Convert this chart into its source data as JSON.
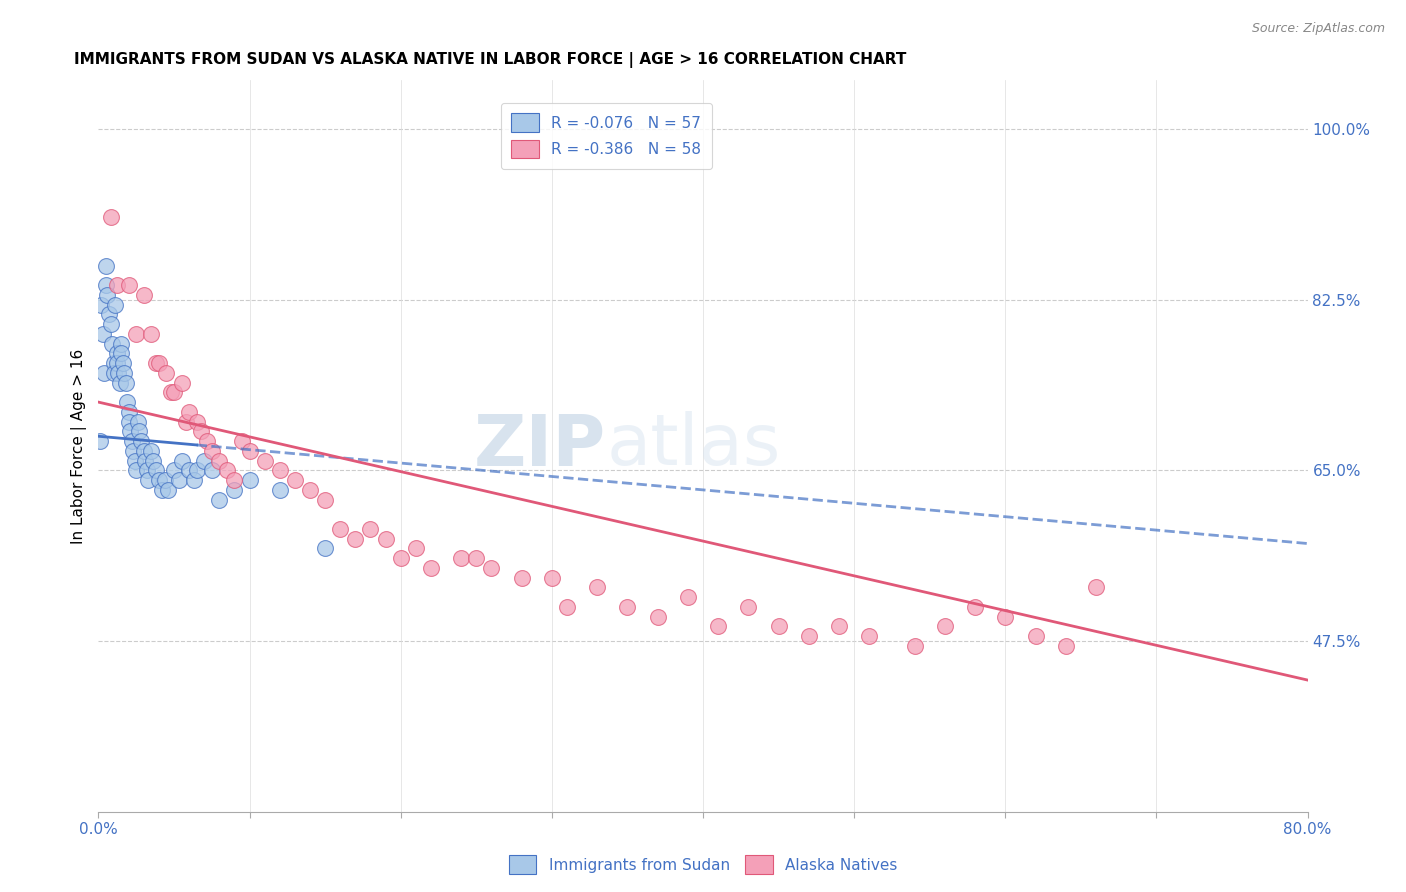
{
  "title": "IMMIGRANTS FROM SUDAN VS ALASKA NATIVE IN LABOR FORCE | AGE > 16 CORRELATION CHART",
  "source": "Source: ZipAtlas.com",
  "ylabel": "In Labor Force | Age > 16",
  "right_yticks": [
    "100.0%",
    "82.5%",
    "65.0%",
    "47.5%"
  ],
  "right_ytick_vals": [
    1.0,
    0.825,
    0.65,
    0.475
  ],
  "legend_r1": "R = -0.076   N = 57",
  "legend_r2": "R = -0.386   N = 58",
  "color_blue": "#a8c8e8",
  "color_pink": "#f4a0b8",
  "color_blue_dark": "#4472c4",
  "color_pink_dark": "#e05878",
  "watermark_zip": "ZIP",
  "watermark_atlas": "atlas",
  "xmin": 0.0,
  "xmax": 0.8,
  "ymin": 0.3,
  "ymax": 1.05,
  "sudan_x": [
    0.001,
    0.002,
    0.003,
    0.004,
    0.005,
    0.005,
    0.006,
    0.007,
    0.008,
    0.009,
    0.01,
    0.01,
    0.011,
    0.012,
    0.012,
    0.013,
    0.014,
    0.015,
    0.015,
    0.016,
    0.017,
    0.018,
    0.019,
    0.02,
    0.02,
    0.021,
    0.022,
    0.023,
    0.024,
    0.025,
    0.026,
    0.027,
    0.028,
    0.03,
    0.031,
    0.032,
    0.033,
    0.035,
    0.036,
    0.038,
    0.04,
    0.042,
    0.044,
    0.046,
    0.05,
    0.053,
    0.055,
    0.06,
    0.063,
    0.065,
    0.07,
    0.075,
    0.08,
    0.09,
    0.1,
    0.12,
    0.15
  ],
  "sudan_y": [
    0.68,
    0.82,
    0.79,
    0.75,
    0.86,
    0.84,
    0.83,
    0.81,
    0.8,
    0.78,
    0.76,
    0.75,
    0.82,
    0.77,
    0.76,
    0.75,
    0.74,
    0.78,
    0.77,
    0.76,
    0.75,
    0.74,
    0.72,
    0.71,
    0.7,
    0.69,
    0.68,
    0.67,
    0.66,
    0.65,
    0.7,
    0.69,
    0.68,
    0.67,
    0.66,
    0.65,
    0.64,
    0.67,
    0.66,
    0.65,
    0.64,
    0.63,
    0.64,
    0.63,
    0.65,
    0.64,
    0.66,
    0.65,
    0.64,
    0.65,
    0.66,
    0.65,
    0.62,
    0.63,
    0.64,
    0.63,
    0.57
  ],
  "alaska_x": [
    0.008,
    0.012,
    0.02,
    0.025,
    0.03,
    0.035,
    0.038,
    0.04,
    0.045,
    0.048,
    0.05,
    0.055,
    0.058,
    0.06,
    0.065,
    0.068,
    0.072,
    0.075,
    0.08,
    0.085,
    0.09,
    0.095,
    0.1,
    0.11,
    0.12,
    0.13,
    0.14,
    0.15,
    0.16,
    0.17,
    0.18,
    0.19,
    0.2,
    0.21,
    0.22,
    0.24,
    0.25,
    0.26,
    0.28,
    0.3,
    0.31,
    0.33,
    0.35,
    0.37,
    0.39,
    0.41,
    0.43,
    0.45,
    0.47,
    0.49,
    0.51,
    0.54,
    0.56,
    0.58,
    0.6,
    0.62,
    0.64,
    0.66
  ],
  "alaska_y": [
    0.91,
    0.84,
    0.84,
    0.79,
    0.83,
    0.79,
    0.76,
    0.76,
    0.75,
    0.73,
    0.73,
    0.74,
    0.7,
    0.71,
    0.7,
    0.69,
    0.68,
    0.67,
    0.66,
    0.65,
    0.64,
    0.68,
    0.67,
    0.66,
    0.65,
    0.64,
    0.63,
    0.62,
    0.59,
    0.58,
    0.59,
    0.58,
    0.56,
    0.57,
    0.55,
    0.56,
    0.56,
    0.55,
    0.54,
    0.54,
    0.51,
    0.53,
    0.51,
    0.5,
    0.52,
    0.49,
    0.51,
    0.49,
    0.48,
    0.49,
    0.48,
    0.47,
    0.49,
    0.51,
    0.5,
    0.48,
    0.47,
    0.53
  ],
  "trendline_blue_start_x": 0.0,
  "trendline_blue_start_y": 0.685,
  "trendline_blue_end_x": 0.8,
  "trendline_blue_end_y": 0.575,
  "trendline_blue_solid_end_x": 0.065,
  "trendline_pink_start_x": 0.0,
  "trendline_pink_start_y": 0.72,
  "trendline_pink_end_x": 0.8,
  "trendline_pink_end_y": 0.435
}
